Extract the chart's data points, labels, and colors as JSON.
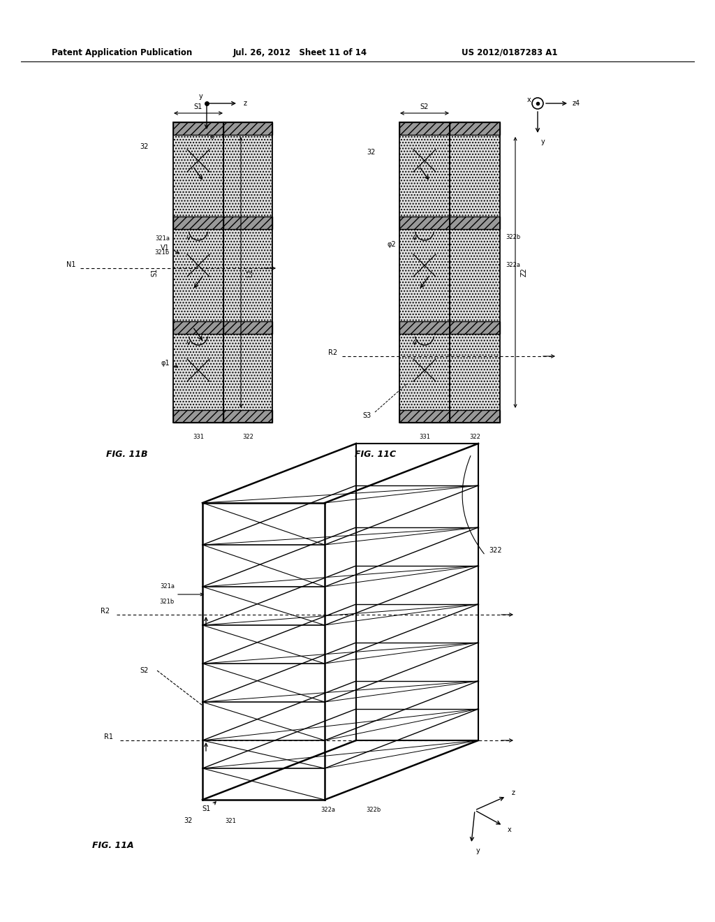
{
  "bg_color": "#ffffff",
  "header_left": "Patent Application Publication",
  "header_mid": "Jul. 26, 2012   Sheet 11 of 14",
  "header_right": "US 2012/0187283 A1"
}
